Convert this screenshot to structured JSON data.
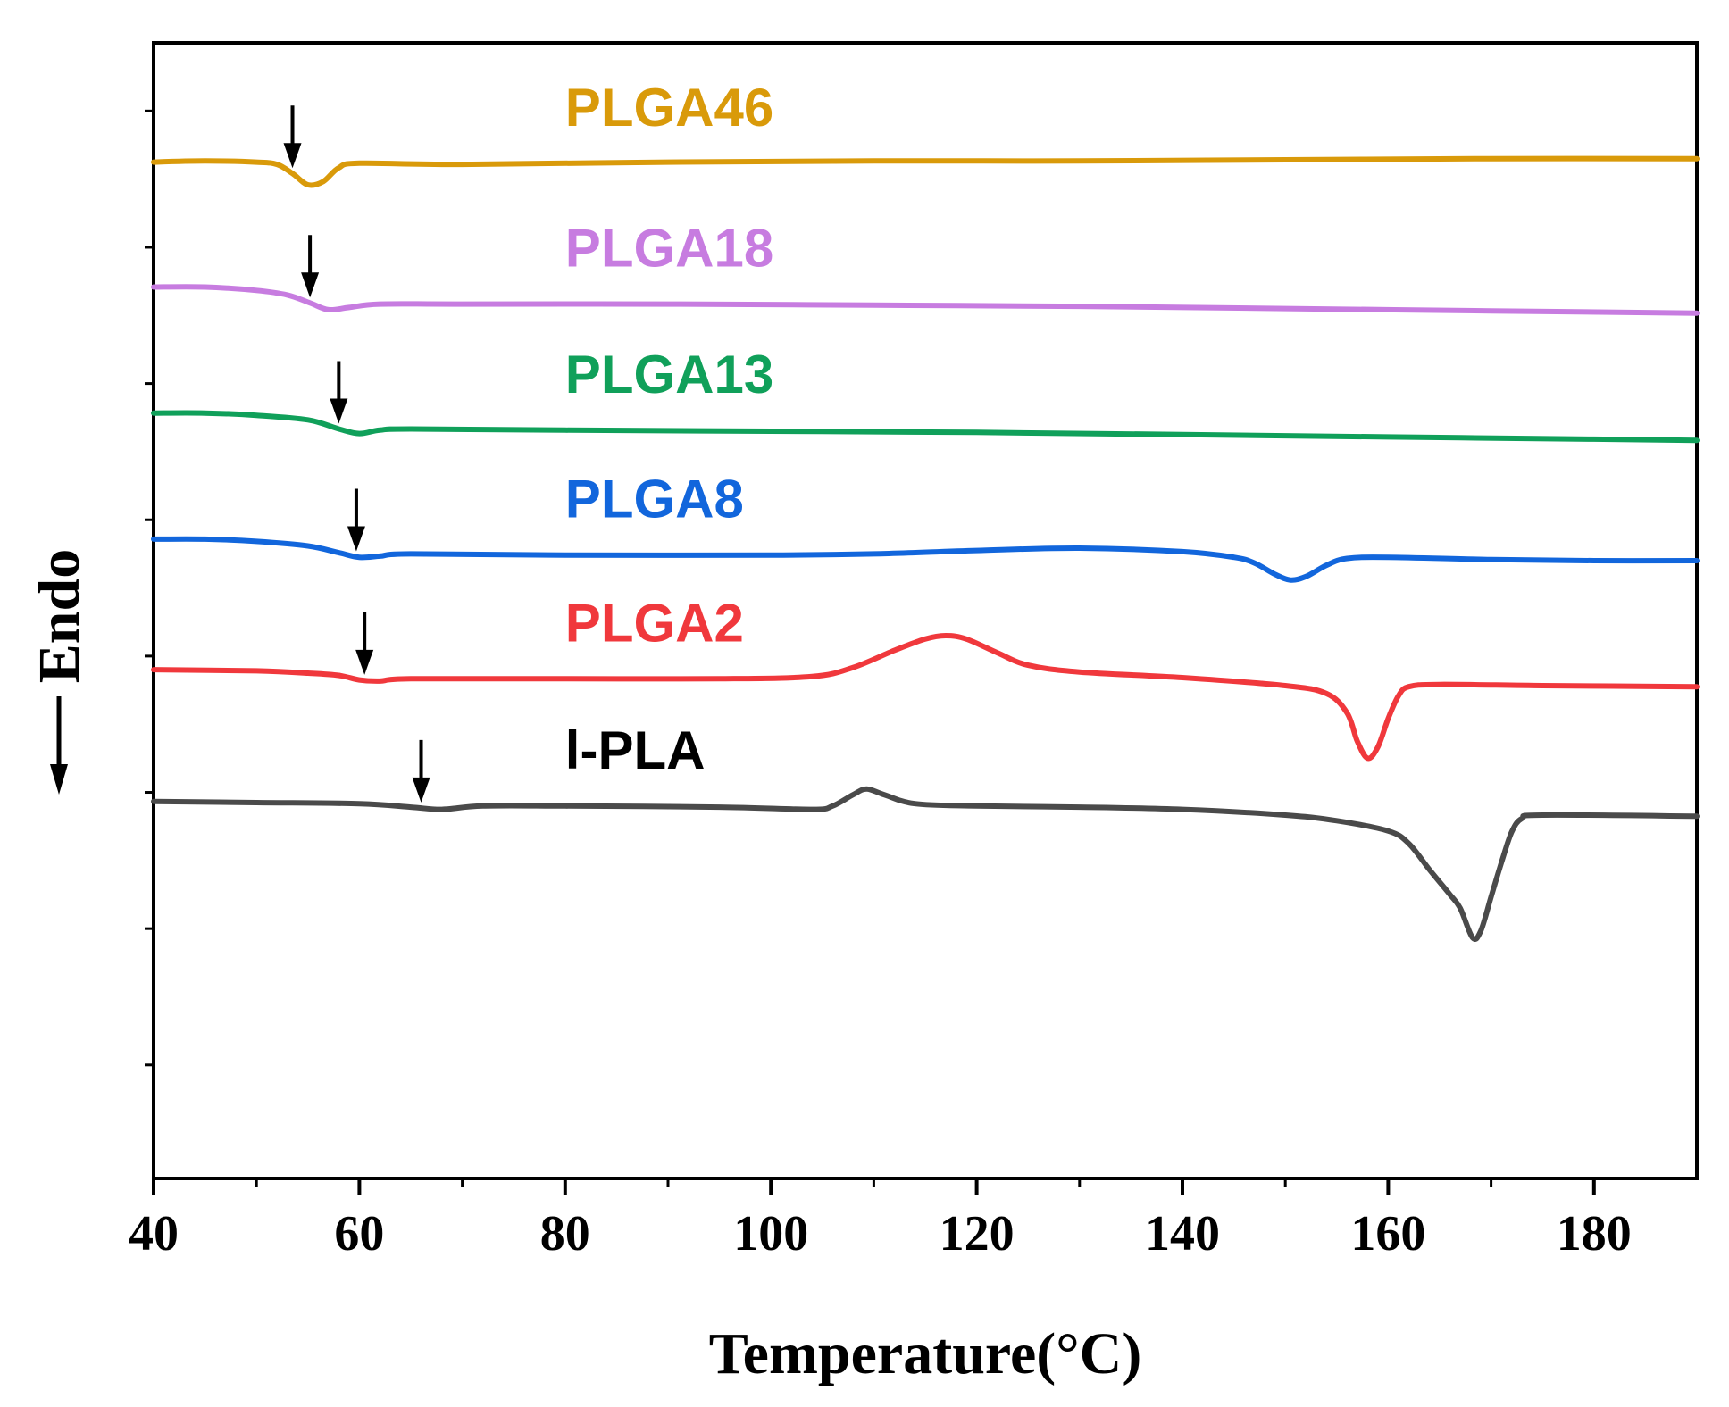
{
  "chart_data": {
    "type": "line",
    "title": "",
    "xlabel": "Temperature(°C)",
    "ylabel": "Endo",
    "xlim": [
      40,
      190
    ],
    "xticks": [
      40,
      60,
      80,
      100,
      120,
      140,
      160,
      180
    ],
    "xtick_labels": [
      "40",
      "60",
      "80",
      "100",
      "120",
      "140",
      "160",
      "180"
    ],
    "y_units": "normalized heat flow (arbitrary, stacked)",
    "ylim": [
      0,
      10
    ],
    "grid": false,
    "legend": "inline labels above each curve",
    "series": [
      {
        "name": "PLGA46",
        "color": "#D99A0A",
        "arrow_temp": 53.5,
        "label_temp": 80,
        "points": [
          [
            40,
            8.95
          ],
          [
            45,
            8.96
          ],
          [
            50,
            8.95
          ],
          [
            52,
            8.93
          ],
          [
            53.5,
            8.85
          ],
          [
            55,
            8.75
          ],
          [
            56.5,
            8.78
          ],
          [
            58,
            8.9
          ],
          [
            60,
            8.94
          ],
          [
            70,
            8.93
          ],
          [
            90,
            8.95
          ],
          [
            110,
            8.96
          ],
          [
            130,
            8.96
          ],
          [
            150,
            8.97
          ],
          [
            170,
            8.98
          ],
          [
            190,
            8.98
          ]
        ]
      },
      {
        "name": "PLGA18",
        "color": "#C77CE0",
        "arrow_temp": 55.2,
        "label_temp": 80,
        "points": [
          [
            40,
            7.85
          ],
          [
            45,
            7.85
          ],
          [
            50,
            7.82
          ],
          [
            53,
            7.78
          ],
          [
            55.2,
            7.71
          ],
          [
            57,
            7.65
          ],
          [
            59,
            7.67
          ],
          [
            62,
            7.7
          ],
          [
            70,
            7.7
          ],
          [
            90,
            7.7
          ],
          [
            110,
            7.69
          ],
          [
            130,
            7.68
          ],
          [
            150,
            7.66
          ],
          [
            170,
            7.64
          ],
          [
            190,
            7.62
          ]
        ]
      },
      {
        "name": "PLGA13",
        "color": "#10A05A",
        "arrow_temp": 58,
        "label_temp": 80,
        "points": [
          [
            40,
            6.74
          ],
          [
            45,
            6.74
          ],
          [
            50,
            6.72
          ],
          [
            55,
            6.68
          ],
          [
            58,
            6.6
          ],
          [
            60,
            6.56
          ],
          [
            62,
            6.59
          ],
          [
            65,
            6.6
          ],
          [
            80,
            6.59
          ],
          [
            100,
            6.58
          ],
          [
            120,
            6.57
          ],
          [
            140,
            6.55
          ],
          [
            160,
            6.53
          ],
          [
            180,
            6.51
          ],
          [
            190,
            6.5
          ]
        ]
      },
      {
        "name": "PLGA8",
        "color": "#1266DC",
        "arrow_temp": 59.7,
        "label_temp": 80,
        "points": [
          [
            40,
            5.63
          ],
          [
            45,
            5.63
          ],
          [
            50,
            5.61
          ],
          [
            55,
            5.57
          ],
          [
            58,
            5.51
          ],
          [
            60,
            5.47
          ],
          [
            62,
            5.48
          ],
          [
            65,
            5.5
          ],
          [
            80,
            5.49
          ],
          [
            100,
            5.49
          ],
          [
            110,
            5.5
          ],
          [
            120,
            5.53
          ],
          [
            130,
            5.55
          ],
          [
            140,
            5.52
          ],
          [
            145,
            5.47
          ],
          [
            147,
            5.42
          ],
          [
            149,
            5.32
          ],
          [
            150.5,
            5.27
          ],
          [
            152,
            5.3
          ],
          [
            154,
            5.4
          ],
          [
            156,
            5.46
          ],
          [
            160,
            5.47
          ],
          [
            170,
            5.45
          ],
          [
            180,
            5.44
          ],
          [
            190,
            5.44
          ]
        ]
      },
      {
        "name": "PLGA2",
        "color": "#F0383C",
        "arrow_temp": 60.5,
        "label_temp": 80,
        "points": [
          [
            40,
            4.48
          ],
          [
            50,
            4.47
          ],
          [
            55,
            4.45
          ],
          [
            58,
            4.43
          ],
          [
            60,
            4.39
          ],
          [
            62,
            4.38
          ],
          [
            65,
            4.4
          ],
          [
            80,
            4.4
          ],
          [
            95,
            4.4
          ],
          [
            104,
            4.42
          ],
          [
            108,
            4.5
          ],
          [
            112,
            4.65
          ],
          [
            115,
            4.75
          ],
          [
            117,
            4.78
          ],
          [
            119,
            4.75
          ],
          [
            122,
            4.63
          ],
          [
            125,
            4.52
          ],
          [
            130,
            4.46
          ],
          [
            140,
            4.41
          ],
          [
            150,
            4.34
          ],
          [
            154,
            4.27
          ],
          [
            156,
            4.1
          ],
          [
            157,
            3.85
          ],
          [
            158,
            3.7
          ],
          [
            159,
            3.8
          ],
          [
            160,
            4.05
          ],
          [
            161,
            4.25
          ],
          [
            162,
            4.33
          ],
          [
            165,
            4.35
          ],
          [
            175,
            4.34
          ],
          [
            190,
            4.33
          ]
        ]
      },
      {
        "name": "l-PLA",
        "color": "#4A4A4A",
        "arrow_temp": 66,
        "label_temp": 80,
        "points": [
          [
            40,
            3.32
          ],
          [
            50,
            3.31
          ],
          [
            60,
            3.3
          ],
          [
            65,
            3.27
          ],
          [
            68,
            3.25
          ],
          [
            72,
            3.28
          ],
          [
            80,
            3.28
          ],
          [
            95,
            3.27
          ],
          [
            104,
            3.25
          ],
          [
            106,
            3.28
          ],
          [
            108,
            3.38
          ],
          [
            109.3,
            3.43
          ],
          [
            111,
            3.38
          ],
          [
            114,
            3.3
          ],
          [
            120,
            3.28
          ],
          [
            130,
            3.27
          ],
          [
            140,
            3.25
          ],
          [
            150,
            3.2
          ],
          [
            155,
            3.15
          ],
          [
            160,
            3.06
          ],
          [
            162,
            2.95
          ],
          [
            164,
            2.72
          ],
          [
            166,
            2.5
          ],
          [
            167,
            2.38
          ],
          [
            168.2,
            2.12
          ],
          [
            169,
            2.18
          ],
          [
            170,
            2.48
          ],
          [
            171,
            2.78
          ],
          [
            172,
            3.05
          ],
          [
            173,
            3.17
          ],
          [
            175,
            3.2
          ],
          [
            190,
            3.19
          ]
        ]
      }
    ]
  }
}
